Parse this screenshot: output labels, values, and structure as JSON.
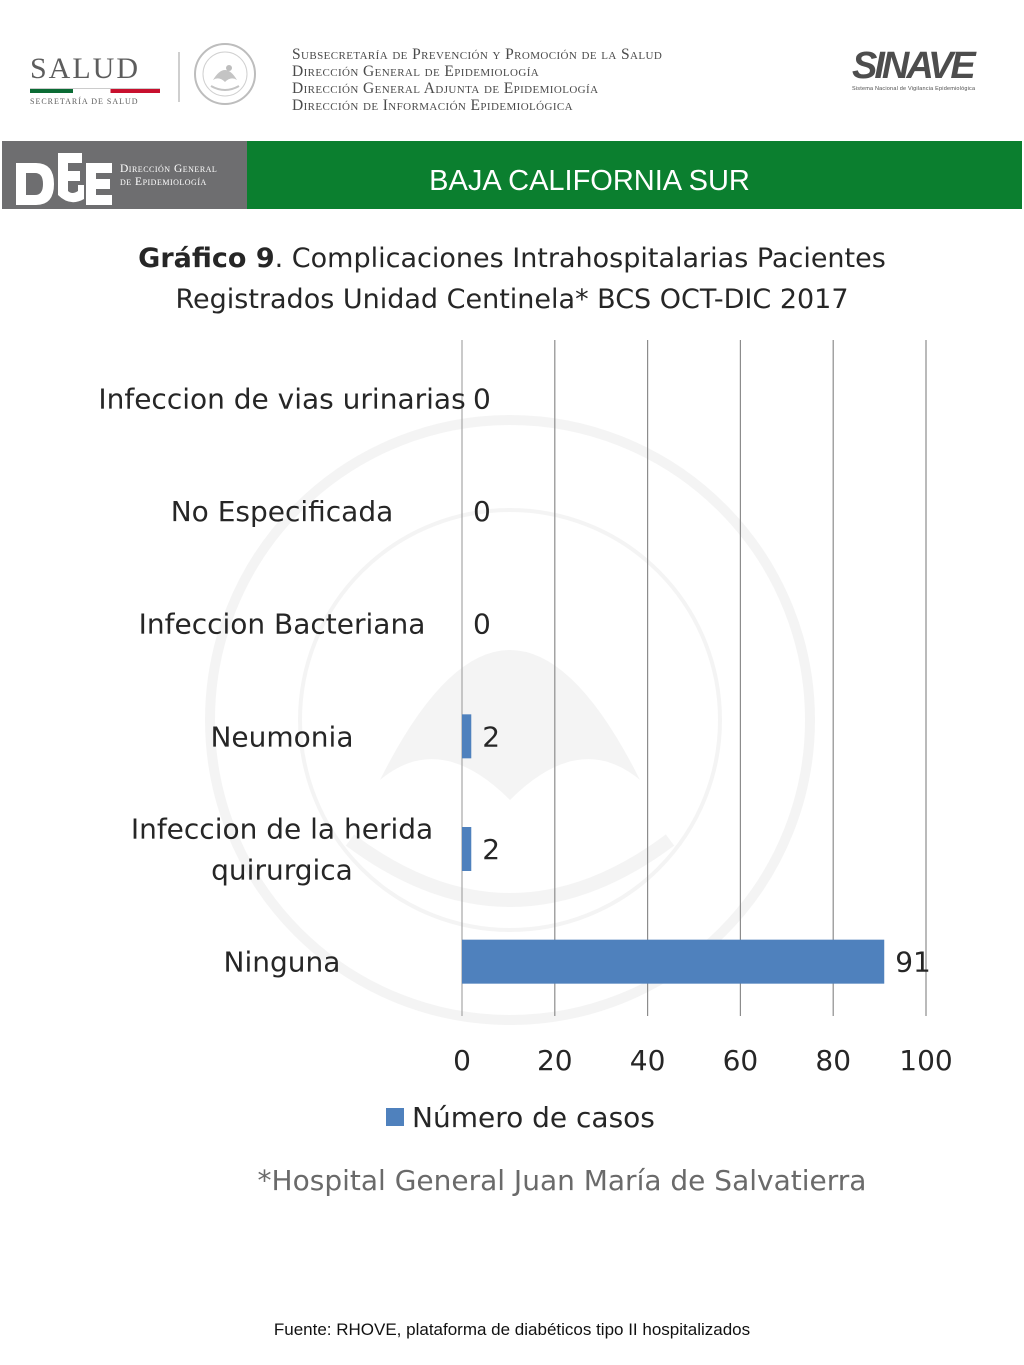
{
  "header": {
    "salud_word": "SALUD",
    "salud_sub": "SECRETARÍA DE SALUD",
    "lines": [
      "Subsecretaría de Prevención y Promoción de la Salud",
      "Dirección General de Epidemiología",
      "Dirección General Adjunta de Epidemiología",
      "Dirección de Información Epidemiológica"
    ],
    "sinave_logo": "SINAVE",
    "sinave_tag": "Sistema Nacional de Vigilancia Epidemiológica",
    "colors": {
      "green": "#0b7f2f",
      "grey": "#6e6e70"
    }
  },
  "banner": {
    "dge_lines": [
      "Dirección General",
      "de Epidemiología"
    ],
    "state": "BAJA CALIFORNIA SUR"
  },
  "title": {
    "bold": "Gráfico 9",
    "rest": ". Complicaciones Intrahospitalarias Pacientes Registrados Unidad Centinela* BCS  OCT-DIC 2017"
  },
  "chart_data": {
    "type": "bar",
    "orientation": "horizontal",
    "categories": [
      "Infeccion de vias urinarias",
      "No Especificada",
      "Infeccion Bacteriana",
      "Neumonia",
      "Infeccion de la herida quirurgica",
      "Ninguna"
    ],
    "category_label_lines": [
      [
        "Infeccion de vias urinarias"
      ],
      [
        "No Especificada"
      ],
      [
        "Infeccion Bacteriana"
      ],
      [
        "Neumonia"
      ],
      [
        "Infeccion de la herida",
        "quirurgica"
      ],
      [
        "Ninguna"
      ]
    ],
    "series": [
      {
        "name": "Número de casos",
        "values": [
          0,
          0,
          0,
          2,
          2,
          91
        ],
        "color": "#4f81bd"
      }
    ],
    "xlim": [
      0,
      100
    ],
    "xticks": [
      0,
      20,
      40,
      60,
      80,
      100
    ],
    "grid": true,
    "data_labels": true,
    "legend_position": "bottom"
  },
  "footnote": "*Hospital General Juan María de Salvatierra",
  "source": "Fuente: RHOVE, plataforma de diabéticos tipo II hospitalizados"
}
